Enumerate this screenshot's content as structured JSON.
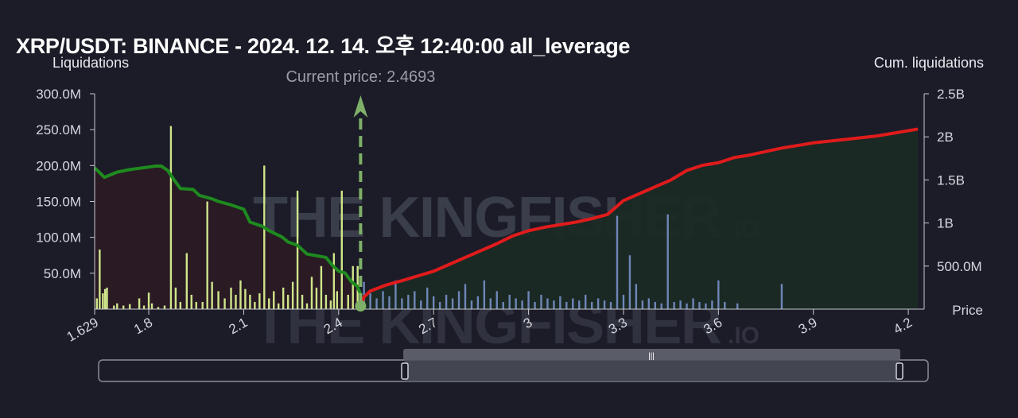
{
  "title": "XRP/USDT: BINANCE - 2024. 12. 14. 오후 12:40:00 all_leverage",
  "watermark": {
    "main": "THE KINGFISHER",
    "suffix": ".IO"
  },
  "colors": {
    "background": "#1b1c27",
    "long_area": "#2a1a24",
    "short_area": "#1a2a24",
    "long_line": "#1f8a1f",
    "short_line": "#e01b1b",
    "bar_long": "#cfe68a",
    "bar_short": "#6f86b8",
    "current_price": "#7fb069"
  },
  "chart_data": {
    "type": "bar",
    "title": "XRP/USDT: BINANCE - 2024. 12. 14. 오후 12:40:00 all_leverage",
    "xlabel": "Price",
    "ylabel": "Liquidations",
    "y2label": "Cum. liquidations",
    "xlim": [
      1.629,
      4.25
    ],
    "ylim": [
      0,
      300000000
    ],
    "y2lim": [
      0,
      2500000000
    ],
    "x_ticks": [
      "1.629",
      "1.8",
      "2.1",
      "2.4",
      "2.7",
      "3",
      "3.3",
      "3.6",
      "3.9",
      "4.2"
    ],
    "x_tick_values": [
      1.629,
      1.8,
      2.1,
      2.4,
      2.7,
      3.0,
      3.3,
      3.6,
      3.9,
      4.2
    ],
    "y_ticks": [
      "50.0M",
      "100.0M",
      "150.0M",
      "200.0M",
      "250.0M",
      "300.0M"
    ],
    "y_tick_values": [
      50000000,
      100000000,
      150000000,
      200000000,
      250000000,
      300000000
    ],
    "y2_ticks": [
      "500.0M",
      "1B",
      "1.5B",
      "2B",
      "2.5B"
    ],
    "y2_tick_values": [
      500000000,
      1000000000,
      1500000000,
      2000000000,
      2500000000
    ],
    "current_price": 2.4693,
    "current_price_label": "Current price: 2.4693",
    "grid": false,
    "series": [
      {
        "kind": "liquidation_bars_long",
        "x": [
          1.636,
          1.645,
          1.655,
          1.662,
          1.668,
          1.69,
          1.7,
          1.72,
          1.74,
          1.77,
          1.785,
          1.8,
          1.81,
          1.83,
          1.85,
          1.87,
          1.885,
          1.9,
          1.92,
          1.935,
          1.95,
          1.97,
          1.985,
          2.0,
          2.02,
          2.04,
          2.06,
          2.075,
          2.09,
          2.105,
          2.12,
          2.135,
          2.15,
          2.165,
          2.18,
          2.195,
          2.21,
          2.225,
          2.24,
          2.255,
          2.27,
          2.285,
          2.3,
          2.315,
          2.33,
          2.345,
          2.36,
          2.375,
          2.385,
          2.395,
          2.41,
          2.43,
          2.445,
          2.46
        ],
        "values": [
          15000000,
          83000000,
          22000000,
          28000000,
          30000000,
          5000000,
          8000000,
          5000000,
          7000000,
          15000000,
          5000000,
          23000000,
          8000000,
          3000000,
          5000000,
          255000000,
          30000000,
          10000000,
          78000000,
          20000000,
          10000000,
          10000000,
          150000000,
          38000000,
          25000000,
          15000000,
          30000000,
          20000000,
          40000000,
          28000000,
          20000000,
          10000000,
          22000000,
          200000000,
          15000000,
          25000000,
          8000000,
          30000000,
          20000000,
          38000000,
          165000000,
          20000000,
          8000000,
          45000000,
          30000000,
          60000000,
          20000000,
          12000000,
          78000000,
          25000000,
          165000000,
          20000000,
          60000000,
          60000000
        ]
      },
      {
        "kind": "liquidation_bars_short",
        "x": [
          2.48,
          2.5,
          2.52,
          2.54,
          2.56,
          2.58,
          2.6,
          2.62,
          2.64,
          2.66,
          2.68,
          2.7,
          2.72,
          2.74,
          2.76,
          2.78,
          2.8,
          2.82,
          2.84,
          2.86,
          2.88,
          2.9,
          2.92,
          2.94,
          2.96,
          2.98,
          3.0,
          3.02,
          3.04,
          3.06,
          3.08,
          3.1,
          3.12,
          3.14,
          3.16,
          3.18,
          3.2,
          3.22,
          3.24,
          3.26,
          3.28,
          3.3,
          3.32,
          3.34,
          3.36,
          3.38,
          3.4,
          3.42,
          3.44,
          3.46,
          3.48,
          3.5,
          3.52,
          3.54,
          3.56,
          3.58,
          3.6,
          3.62,
          3.66,
          3.8
        ],
        "values": [
          38000000,
          22000000,
          15000000,
          25000000,
          18000000,
          40000000,
          15000000,
          20000000,
          25000000,
          12000000,
          30000000,
          18000000,
          10000000,
          20000000,
          15000000,
          25000000,
          35000000,
          12000000,
          18000000,
          40000000,
          15000000,
          25000000,
          10000000,
          20000000,
          15000000,
          12000000,
          25000000,
          10000000,
          20000000,
          15000000,
          12000000,
          18000000,
          10000000,
          15000000,
          12000000,
          20000000,
          10000000,
          15000000,
          12000000,
          10000000,
          130000000,
          20000000,
          75000000,
          35000000,
          12000000,
          15000000,
          10000000,
          8000000,
          132000000,
          10000000,
          12000000,
          8000000,
          15000000,
          10000000,
          8000000,
          12000000,
          40000000,
          10000000,
          8000000,
          35000000
        ]
      },
      {
        "kind": "cumulative_long",
        "x": [
          1.629,
          1.66,
          1.7,
          1.74,
          1.78,
          1.82,
          1.84,
          1.86,
          1.88,
          1.9,
          1.94,
          1.96,
          2.0,
          2.02,
          2.06,
          2.1,
          2.12,
          2.16,
          2.18,
          2.22,
          2.24,
          2.27,
          2.3,
          2.33,
          2.36,
          2.38,
          2.4,
          2.42,
          2.44,
          2.46,
          2.4693
        ],
        "values": [
          1640000000,
          1530000000,
          1590000000,
          1620000000,
          1640000000,
          1660000000,
          1660000000,
          1610000000,
          1500000000,
          1400000000,
          1390000000,
          1320000000,
          1280000000,
          1250000000,
          1210000000,
          1160000000,
          1010000000,
          960000000,
          910000000,
          840000000,
          780000000,
          740000000,
          640000000,
          620000000,
          600000000,
          510000000,
          440000000,
          420000000,
          320000000,
          260000000,
          170000000
        ]
      },
      {
        "kind": "cumulative_short",
        "x": [
          2.4693,
          2.48,
          2.5,
          2.55,
          2.6,
          2.7,
          2.75,
          2.8,
          2.85,
          2.9,
          2.95,
          3.0,
          3.05,
          3.1,
          3.15,
          3.2,
          3.25,
          3.3,
          3.35,
          3.4,
          3.45,
          3.5,
          3.55,
          3.6,
          3.65,
          3.7,
          3.8,
          3.9,
          4.0,
          4.1,
          4.23
        ],
        "values": [
          30000000,
          140000000,
          210000000,
          280000000,
          330000000,
          440000000,
          520000000,
          600000000,
          680000000,
          760000000,
          850000000,
          910000000,
          950000000,
          980000000,
          1010000000,
          1050000000,
          1100000000,
          1260000000,
          1340000000,
          1420000000,
          1500000000,
          1610000000,
          1670000000,
          1700000000,
          1760000000,
          1790000000,
          1870000000,
          1930000000,
          1970000000,
          2010000000,
          2090000000
        ]
      }
    ]
  }
}
